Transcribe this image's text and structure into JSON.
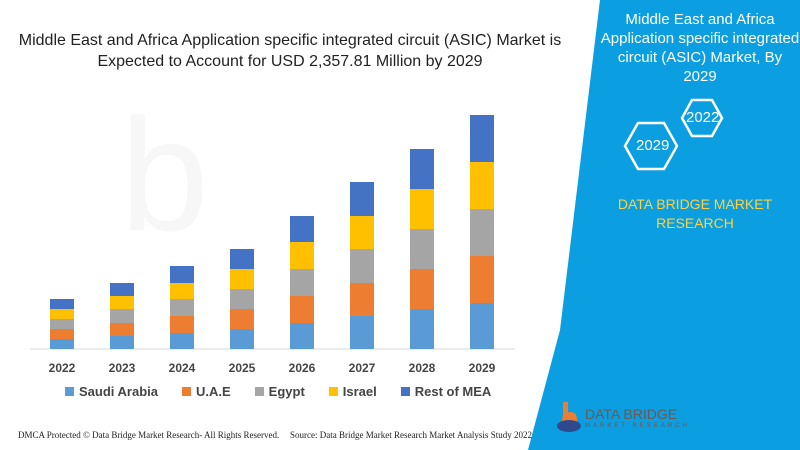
{
  "title": "Middle East and Africa Application specific integrated circuit (ASIC) Market is Expected to Account for USD 2,357.81 Million by 2029",
  "side_panel": {
    "title": "Middle East and Africa Application specific integrated circuit (ASIC) Market, By 2029",
    "hex_years": [
      "2022",
      "2029"
    ],
    "brand": "DATA BRIDGE MARKET RESEARCH",
    "bg": "#0b9ee0"
  },
  "logo": {
    "text": "DATA BRIDGE",
    "sub": "MARKET RESEARCH"
  },
  "footer": {
    "left": "DMCA Protected © Data Bridge Market Research- All Rights Reserved.",
    "right": "Source: Data Bridge Market Research Market Analysis Study 2022"
  },
  "chart_data": {
    "type": "bar",
    "stacked": true,
    "grid": false,
    "categories": [
      "2022",
      "2023",
      "2024",
      "2025",
      "2026",
      "2027",
      "2028",
      "2029"
    ],
    "legend_position": "bottom",
    "series": [
      {
        "name": "Saudi Arabia",
        "color": "#5b9bd5",
        "values": [
          10,
          13,
          16,
          20,
          26,
          33,
          40,
          46
        ]
      },
      {
        "name": "U.A.E",
        "color": "#ed7d31",
        "values": [
          10,
          13,
          17,
          20,
          27,
          33,
          40,
          47
        ]
      },
      {
        "name": "Egypt",
        "color": "#a5a5a5",
        "values": [
          10,
          14,
          17,
          20,
          27,
          34,
          40,
          47
        ]
      },
      {
        "name": "Israel",
        "color": "#ffc000",
        "values": [
          10,
          13,
          16,
          20,
          27,
          33,
          40,
          47
        ]
      },
      {
        "name": "Rest of MEA",
        "color": "#4472c4",
        "values": [
          10,
          13,
          17,
          20,
          26,
          34,
          40,
          47
        ]
      }
    ]
  }
}
